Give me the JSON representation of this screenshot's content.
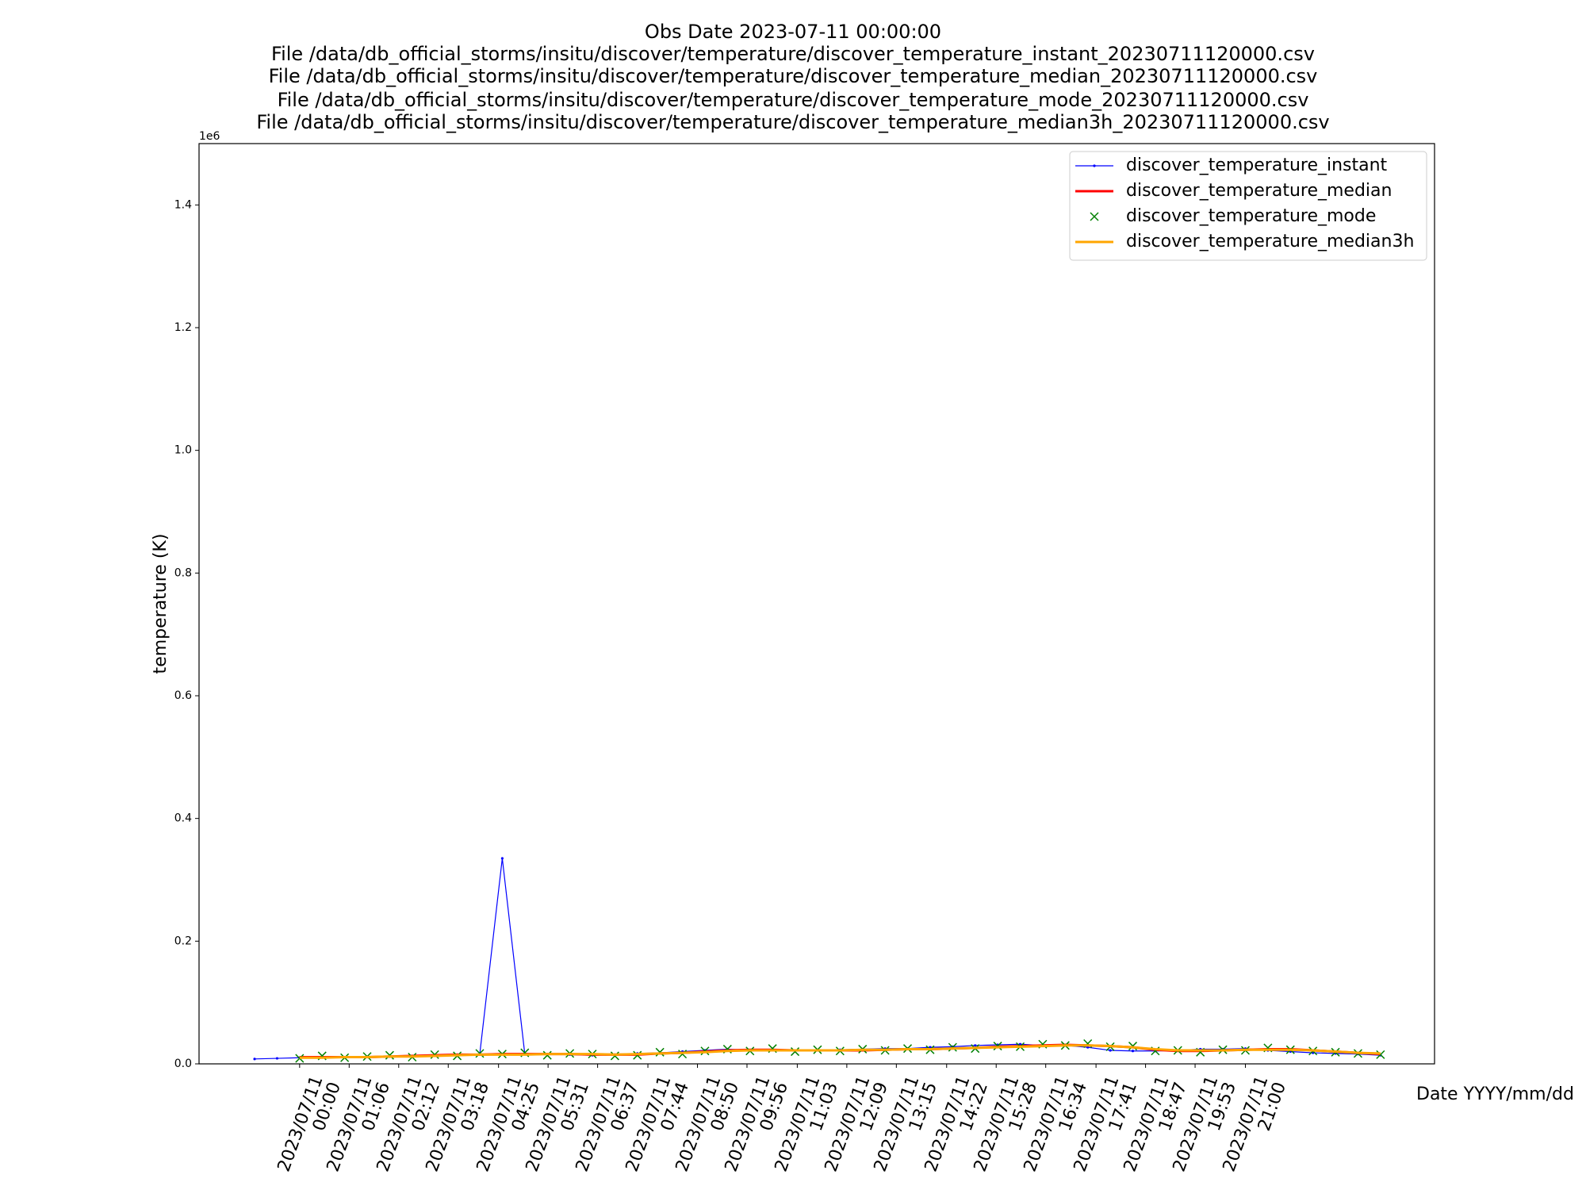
{
  "chart_data": {
    "type": "line",
    "title": [
      "Obs Date 2023-07-11 00:00:00",
      "File /data/db_official_storms/insitu/discover/temperature/discover_temperature_instant_20230711120000.csv",
      "File /data/db_official_storms/insitu/discover/temperature/discover_temperature_median_20230711120000.csv",
      "File /data/db_official_storms/insitu/discover/temperature/discover_temperature_mode_20230711120000.csv",
      "File /data/db_official_storms/insitu/discover/temperature/discover_temperature_median3h_20230711120000.csv"
    ],
    "x_label": "Date YYYY/mm/dd",
    "y_label": "temperature (K)",
    "y_offset_label": "1e6",
    "x": [
      "2023/07/10 23:00",
      "2023/07/10 23:30",
      "2023/07/11 00:00",
      "2023/07/11 00:30",
      "2023/07/11 01:00",
      "2023/07/11 01:30",
      "2023/07/11 02:00",
      "2023/07/11 02:30",
      "2023/07/11 03:00",
      "2023/07/11 03:30",
      "2023/07/11 04:00",
      "2023/07/11 04:30",
      "2023/07/11 05:00",
      "2023/07/11 05:30",
      "2023/07/11 06:00",
      "2023/07/11 06:30",
      "2023/07/11 07:00",
      "2023/07/11 07:30",
      "2023/07/11 08:00",
      "2023/07/11 08:30",
      "2023/07/11 09:00",
      "2023/07/11 09:30",
      "2023/07/11 10:00",
      "2023/07/11 10:30",
      "2023/07/11 11:00",
      "2023/07/11 11:30",
      "2023/07/11 12:00",
      "2023/07/11 12:30",
      "2023/07/11 13:00",
      "2023/07/11 13:30",
      "2023/07/11 14:00",
      "2023/07/11 14:30",
      "2023/07/11 15:00",
      "2023/07/11 15:30",
      "2023/07/11 16:00",
      "2023/07/11 16:30",
      "2023/07/11 17:00",
      "2023/07/11 17:30",
      "2023/07/11 18:00",
      "2023/07/11 18:30",
      "2023/07/11 19:00",
      "2023/07/11 19:30",
      "2023/07/11 20:00",
      "2023/07/11 20:30",
      "2023/07/11 21:00",
      "2023/07/11 21:30",
      "2023/07/11 22:00",
      "2023/07/11 22:30",
      "2023/07/11 23:00",
      "2023/07/11 23:30",
      "2023/07/12 00:00"
    ],
    "series": [
      {
        "name": "discover_temperature_instant",
        "color": "#0000ff",
        "style": "line-dot",
        "values": [
          8000,
          9000,
          10000,
          12000,
          11000,
          11000,
          12000,
          13000,
          14000,
          15000,
          16000,
          335000,
          16000,
          16000,
          15000,
          14000,
          15000,
          17000,
          18000,
          20000,
          22000,
          24000,
          22000,
          23000,
          21000,
          22000,
          23000,
          24000,
          25000,
          25000,
          27000,
          28000,
          30000,
          31000,
          32000,
          30000,
          30000,
          27000,
          22000,
          21000,
          21000,
          22000,
          24000,
          24000,
          25000,
          22000,
          20000,
          18000,
          17000,
          16000,
          14000
        ]
      },
      {
        "name": "discover_temperature_median",
        "color": "#ff0000",
        "style": "line",
        "values": [
          null,
          null,
          11000,
          11000,
          11000,
          11000,
          12000,
          13000,
          14000,
          15000,
          15000,
          16000,
          16000,
          16000,
          16000,
          15000,
          15000,
          15000,
          17000,
          18000,
          20000,
          22000,
          23000,
          23000,
          22000,
          22000,
          22000,
          22000,
          23000,
          24000,
          24000,
          25000,
          26000,
          28000,
          29000,
          30000,
          31000,
          30000,
          29000,
          27000,
          23000,
          21000,
          21000,
          22000,
          23000,
          24000,
          24000,
          22000,
          20000,
          18000,
          16000
        ]
      },
      {
        "name": "discover_temperature_mode",
        "color": "#008000",
        "style": "x",
        "values": [
          null,
          null,
          9000,
          13000,
          10000,
          12000,
          14000,
          11000,
          15000,
          13000,
          17000,
          16000,
          18000,
          14000,
          17000,
          16000,
          13000,
          14000,
          19000,
          16000,
          21000,
          24000,
          21000,
          25000,
          20000,
          23000,
          21000,
          24000,
          22000,
          25000,
          23000,
          27000,
          25000,
          29000,
          28000,
          32000,
          30000,
          33000,
          28000,
          29000,
          21000,
          22000,
          19000,
          23000,
          22000,
          26000,
          23000,
          21000,
          19000,
          17000,
          15000
        ]
      },
      {
        "name": "discover_temperature_median3h",
        "color": "#ffa500",
        "style": "line",
        "values": [
          null,
          null,
          10000,
          10000,
          11000,
          11000,
          12000,
          12000,
          13000,
          14000,
          15000,
          15000,
          15000,
          16000,
          16000,
          16000,
          15000,
          16000,
          17000,
          18000,
          19000,
          21000,
          22000,
          22000,
          22000,
          22000,
          22000,
          23000,
          23000,
          24000,
          24000,
          25000,
          26000,
          27000,
          28000,
          29000,
          30000,
          30000,
          29000,
          27000,
          24000,
          22000,
          22000,
          22000,
          23000,
          23000,
          23000,
          22000,
          20000,
          18000,
          17000
        ]
      }
    ],
    "xlim": [
      "2023/07/10 21:46",
      "2023/07/12 01:12"
    ],
    "xticks": [
      "2023/07/11 00:00",
      "2023/07/11 01:06",
      "2023/07/11 02:12",
      "2023/07/11 03:18",
      "2023/07/11 04:25",
      "2023/07/11 05:31",
      "2023/07/11 06:37",
      "2023/07/11 07:44",
      "2023/07/11 08:50",
      "2023/07/11 09:56",
      "2023/07/11 11:03",
      "2023/07/11 12:09",
      "2023/07/11 13:15",
      "2023/07/11 14:22",
      "2023/07/11 15:28",
      "2023/07/11 16:34",
      "2023/07/11 17:41",
      "2023/07/11 18:47",
      "2023/07/11 19:53",
      "2023/07/11 21:00"
    ],
    "ylim": [
      0,
      1500000
    ],
    "yticks": [
      {
        "value": 0,
        "label": "0.0"
      },
      {
        "value": 200000,
        "label": "0.2"
      },
      {
        "value": 400000,
        "label": "0.4"
      },
      {
        "value": 600000,
        "label": "0.6"
      },
      {
        "value": 800000,
        "label": "0.8"
      },
      {
        "value": 1000000,
        "label": "1.0"
      },
      {
        "value": 1200000,
        "label": "1.2"
      },
      {
        "value": 1400000,
        "label": "1.4"
      }
    ],
    "grid": false,
    "legend": "upper right"
  }
}
